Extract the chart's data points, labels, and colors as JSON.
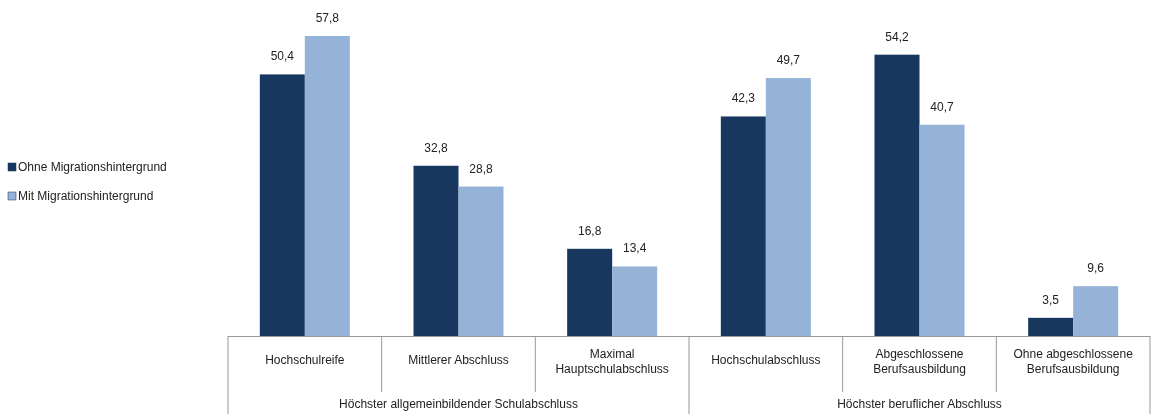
{
  "chart_data": {
    "type": "bar",
    "categories": [
      "Hochschulreife",
      "Mittlerer Abschluss",
      "Maximal Hauptschulabschluss",
      "Hochschulabschluss",
      "Abgeschlossene Berufsausbildung",
      "Ohne abgeschlossene Berufsausbildung"
    ],
    "series": [
      {
        "name": "Ohne Migrationshintergrund",
        "color": "#17375e",
        "values": [
          50.4,
          32.8,
          16.8,
          42.3,
          54.2,
          3.5
        ],
        "value_labels": [
          "50,4",
          "32,8",
          "16,8",
          "42,3",
          "54,2",
          "3,5"
        ]
      },
      {
        "name": "Mit Migrationshintergrund",
        "color": "#95b3d7",
        "values": [
          57.8,
          28.8,
          13.4,
          49.7,
          40.7,
          9.6
        ],
        "value_labels": [
          "57,8",
          "28,8",
          "13,4",
          "49,7",
          "40,7",
          "9,6"
        ]
      }
    ],
    "annotations": [
      "Höchster allgemeinbildender Schulabschluss",
      "Höchster beruflicher Abschluss"
    ],
    "legend": "left"
  }
}
